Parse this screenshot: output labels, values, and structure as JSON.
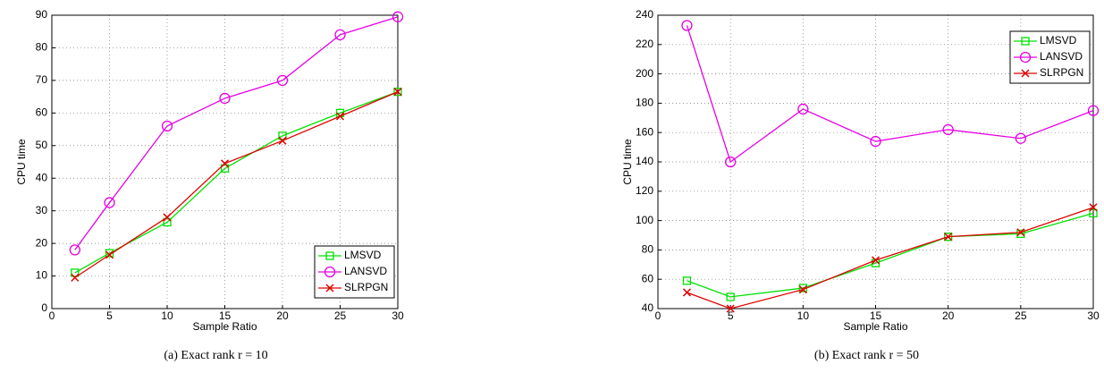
{
  "chart_data": [
    {
      "type": "line",
      "caption": "(a)  Exact rank r = 10",
      "xlabel": "Sample Ratio",
      "ylabel": "CPU time",
      "x": [
        2,
        5,
        10,
        15,
        20,
        25,
        30
      ],
      "xlim": [
        0,
        30
      ],
      "xticks": [
        0,
        5,
        10,
        15,
        20,
        25,
        30
      ],
      "ylim": [
        0,
        90
      ],
      "yticks": [
        0,
        10,
        20,
        30,
        40,
        50,
        60,
        70,
        80,
        90
      ],
      "grid": true,
      "legend": "lower right",
      "series": [
        {
          "name": "LMSVD",
          "color": "#00e000",
          "marker": "square",
          "values": [
            11,
            17,
            26.5,
            43,
            53,
            60,
            66.5
          ]
        },
        {
          "name": "LANSVD",
          "color": "#e600e6",
          "marker": "circle",
          "values": [
            18,
            32.5,
            56,
            64.5,
            70,
            84,
            89.5
          ]
        },
        {
          "name": "SLRPGN",
          "color": "#e00000",
          "marker": "x",
          "values": [
            9.5,
            16.5,
            28,
            44.5,
            51.5,
            59,
            66.5
          ]
        }
      ]
    },
    {
      "type": "line",
      "caption": "(b)  Exact rank r = 50",
      "xlabel": "Sample Ratio",
      "ylabel": "CPU time",
      "x": [
        2,
        5,
        10,
        15,
        20,
        25,
        30
      ],
      "xlim": [
        0,
        30
      ],
      "xticks": [
        0,
        5,
        10,
        15,
        20,
        25,
        30
      ],
      "ylim": [
        40,
        240
      ],
      "yticks": [
        40,
        60,
        80,
        100,
        120,
        140,
        160,
        180,
        200,
        220,
        240
      ],
      "grid": true,
      "legend": "upper right",
      "series": [
        {
          "name": "LMSVD",
          "color": "#00e000",
          "marker": "square",
          "values": [
            59,
            48,
            54,
            71,
            89,
            91,
            105
          ]
        },
        {
          "name": "LANSVD",
          "color": "#e600e6",
          "marker": "circle",
          "values": [
            233,
            140,
            176,
            154,
            162,
            156,
            175
          ]
        },
        {
          "name": "SLRPGN",
          "color": "#e00000",
          "marker": "x",
          "values": [
            51,
            40,
            53,
            73,
            89,
            92,
            109
          ]
        }
      ]
    }
  ]
}
